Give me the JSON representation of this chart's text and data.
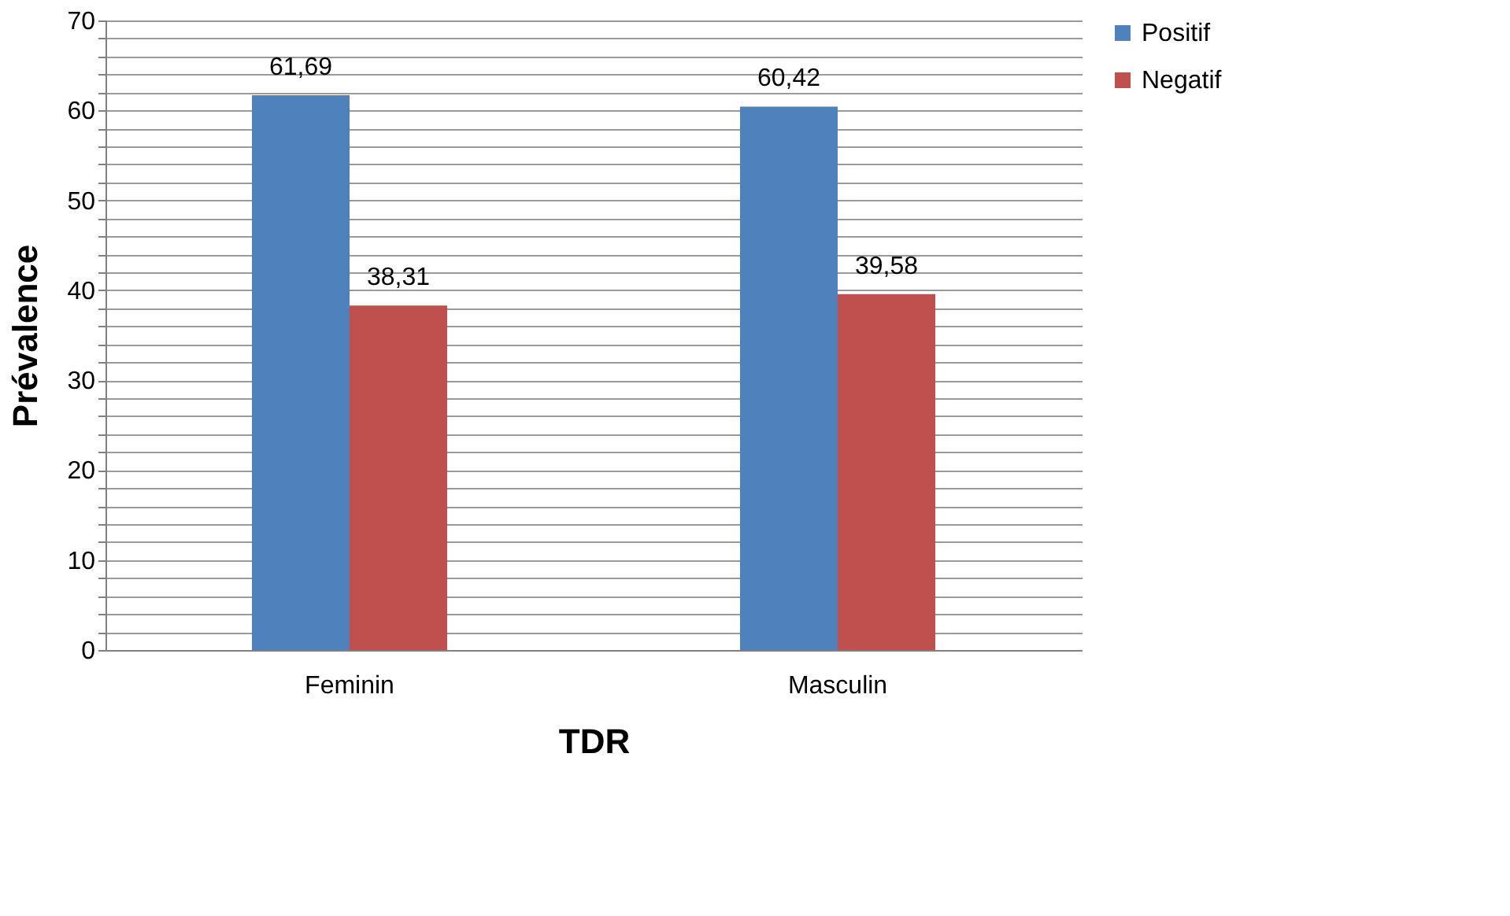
{
  "chart_data": {
    "type": "bar",
    "xlabel": "TDR",
    "ylabel": "Prévalence",
    "categories": [
      "Feminin",
      "Masculin"
    ],
    "series": [
      {
        "name": "Positif",
        "color": "#4f81bd",
        "values": [
          61.69,
          60.42
        ],
        "value_labels": [
          "61,69",
          "60,42"
        ]
      },
      {
        "name": "Negatif",
        "color": "#c0504d",
        "values": [
          38.31,
          39.58
        ],
        "value_labels": [
          "38,31",
          "39,58"
        ]
      }
    ],
    "ylim": [
      0,
      70
    ],
    "yticks": [
      0,
      {
        "value": 2,
        "label": null
      },
      {
        "value": 4,
        "label": null
      },
      {
        "value": 6,
        "label": null
      },
      {
        "value": 8,
        "label": null
      },
      10,
      {
        "value": 12,
        "label": null
      },
      {
        "value": 14,
        "label": null
      },
      {
        "value": 16,
        "label": null
      },
      {
        "value": 18,
        "label": null
      },
      20,
      {
        "value": 22,
        "label": null
      },
      {
        "value": 24,
        "label": null
      },
      {
        "value": 26,
        "label": null
      },
      {
        "value": 28,
        "label": null
      },
      30,
      {
        "value": 32,
        "label": null
      },
      {
        "value": 34,
        "label": null
      },
      {
        "value": 36,
        "label": null
      },
      {
        "value": 38,
        "label": null
      },
      40,
      {
        "value": 42,
        "label": null
      },
      {
        "value": 44,
        "label": null
      },
      {
        "value": 46,
        "label": null
      },
      {
        "value": 48,
        "label": null
      },
      50,
      {
        "value": 52,
        "label": null
      },
      {
        "value": 54,
        "label": null
      },
      {
        "value": 56,
        "label": null
      },
      {
        "value": 58,
        "label": null
      },
      60,
      {
        "value": 62,
        "label": null
      },
      {
        "value": 64,
        "label": null
      },
      {
        "value": 66,
        "label": null
      },
      {
        "value": 68,
        "label": null
      },
      70
    ],
    "grid": "y",
    "legend": "right"
  }
}
